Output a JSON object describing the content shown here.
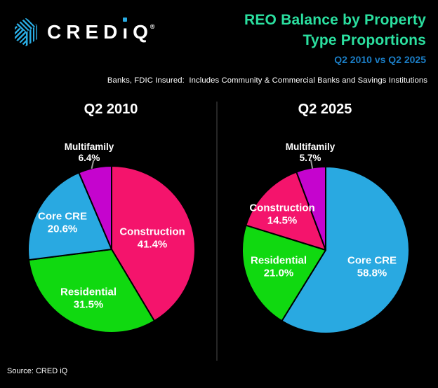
{
  "header": {
    "logo": {
      "brand": "CRED",
      "i_char": "ı",
      "q_char": "Q",
      "registered": "®",
      "icon": "cred-iq-cube-icon",
      "accent_color": "#29ABE2"
    },
    "title_line1": "REO Balance by Property",
    "title_line2": "Type Proportions",
    "subtitle": "Q2 2010 vs Q2 2025",
    "note": "Banks, FDIC Insured:  Includes Community & Commercial Banks and Savings Institutions",
    "title_color": "#2BE0A0",
    "subtitle_color": "#1B7EC6"
  },
  "footer": {
    "source": "Source: CRED  iQ"
  },
  "chart_data": [
    {
      "type": "pie",
      "title": "Q2 2010",
      "start_angle_deg": 0,
      "direction": "clockwise",
      "legend_position": "in-slice labels",
      "slices": [
        {
          "label": "Construction",
          "value": 41.4,
          "pct_label": "41.4%",
          "color": "#F4146C"
        },
        {
          "label": "Residential",
          "value": 31.5,
          "pct_label": "31.5%",
          "color": "#10D910"
        },
        {
          "label": "Core CRE",
          "value": 20.6,
          "pct_label": "20.6%",
          "color": "#29A9E1"
        },
        {
          "label": "Multifamily",
          "value": 6.4,
          "pct_label": "6.4%",
          "color": "#C504CE"
        }
      ]
    },
    {
      "type": "pie",
      "title": "Q2 2025",
      "start_angle_deg": 0,
      "direction": "clockwise",
      "legend_position": "in-slice labels",
      "slices": [
        {
          "label": "Core CRE",
          "value": 58.8,
          "pct_label": "58.8%",
          "color": "#29A9E1"
        },
        {
          "label": "Residential",
          "value": 21.0,
          "pct_label": "21.0%",
          "color": "#10D910"
        },
        {
          "label": "Construction",
          "value": 14.5,
          "pct_label": "14.5%",
          "color": "#F4146C"
        },
        {
          "label": "Multifamily",
          "value": 5.7,
          "pct_label": "5.7%",
          "color": "#C504CE"
        }
      ]
    }
  ]
}
